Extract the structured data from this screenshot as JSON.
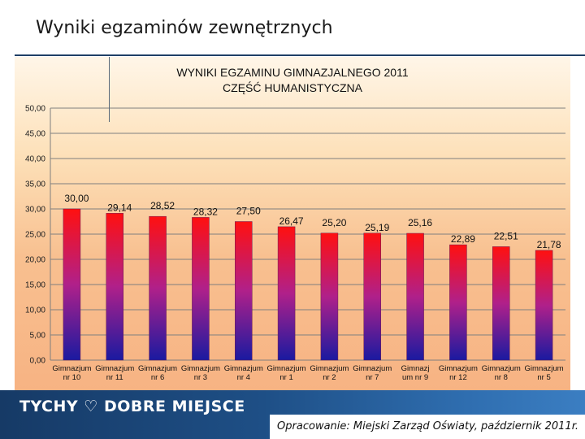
{
  "slide": {
    "title": "Wyniki egzaminów zewnętrznych",
    "footer_logo_part1": "TYCHY",
    "footer_logo_part2": "DOBRE MIEJSCE",
    "footer_source": "Opracowanie: Miejski Zarząd Oświaty, październik 2011r."
  },
  "chart_data": {
    "type": "bar",
    "title_line1": "WYNIKI EGZAMINU GIMNAZJALNEGO 2011",
    "title_line2": "CZĘŚĆ HUMANISTYCZNA",
    "categories": [
      [
        "Gimnazjum",
        "nr 10"
      ],
      [
        "Gimnazjum",
        "nr 11"
      ],
      [
        "Gimnazjum",
        "nr 6"
      ],
      [
        "Gimnazjum",
        "nr 3"
      ],
      [
        "Gimnazjum",
        "nr 4"
      ],
      [
        "Gimnazjum",
        "nr 1"
      ],
      [
        "Gimnazjum",
        "nr 2"
      ],
      [
        "Gimnazjum",
        "nr 7"
      ],
      [
        "Gimnazj",
        "um nr 9"
      ],
      [
        "Gimnazjum",
        "nr 12"
      ],
      [
        "Gimnazjum",
        "nr 8"
      ],
      [
        "Gimnazjum",
        "nr 5"
      ]
    ],
    "values": [
      30.0,
      29.14,
      28.52,
      28.32,
      27.5,
      26.47,
      25.2,
      25.19,
      25.16,
      22.89,
      22.51,
      21.78
    ],
    "data_labels": [
      "30,00",
      "29,14",
      "28,52",
      "28,32",
      "27,50",
      "26,47",
      "25,20",
      "25,19",
      "25,16",
      "22,89",
      "22,51",
      "21,78"
    ],
    "y_ticks": [
      0,
      5,
      10,
      15,
      20,
      25,
      30,
      35,
      40,
      45,
      50
    ],
    "y_tick_labels": [
      "0,00",
      "5,00",
      "10,00",
      "15,00",
      "20,00",
      "25,00",
      "30,00",
      "35,00",
      "40,00",
      "45,00",
      "50,00"
    ],
    "ylim": [
      0,
      50
    ],
    "grid": true,
    "colors": {
      "bar_top": "#ff1010",
      "bar_mid": "#b0208a",
      "bar_bottom": "#1a1aa0",
      "grid": "#7f7f7f"
    }
  }
}
